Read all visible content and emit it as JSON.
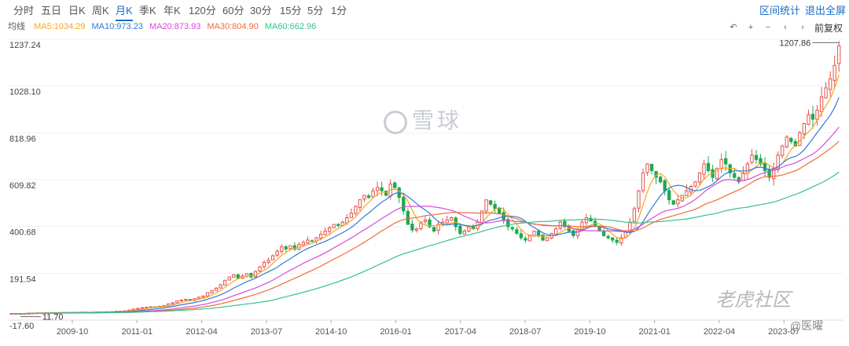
{
  "toolbar": {
    "periods": [
      "分时",
      "五日",
      "日K",
      "周K",
      "月K",
      "季K",
      "年K",
      "120分",
      "60分",
      "30分",
      "15分",
      "5分",
      "1分"
    ],
    "active_period": "月K",
    "range_stats": "区间统计",
    "exit_fullscreen": "退出全屏"
  },
  "ma_legend": {
    "label": "均线",
    "items": [
      {
        "text": "MA5:1034.29",
        "color": "#f5a623"
      },
      {
        "text": "MA10:973.23",
        "color": "#2f7ad6"
      },
      {
        "text": "MA20:873.93",
        "color": "#d94ad8"
      },
      {
        "text": "MA30:804.90",
        "color": "#f06c3c"
      },
      {
        "text": "MA60:662.96",
        "color": "#34c28e"
      }
    ]
  },
  "controls": {
    "icons": [
      "undo-icon",
      "zoom-in-icon",
      "zoom-out-icon",
      "left-icon",
      "right-icon"
    ],
    "glyphs": [
      "↶",
      "+",
      "−",
      "‹",
      "›"
    ],
    "adjust": "前复权"
  },
  "watermarks": {
    "xueqiu": "雪球",
    "laohu": "老虎社区",
    "author": "@医曜"
  },
  "chart_data": {
    "type": "candlestick",
    "y_ticks": [
      "1237.24",
      "1028.10",
      "818.96",
      "609.82",
      "400.68",
      "191.54",
      "-17.60"
    ],
    "ylim": [
      -17.6,
      1237.24
    ],
    "x_ticks": [
      "2009-10",
      "2011-01",
      "2012-04",
      "2013-07",
      "2014-10",
      "2016-01",
      "2017-04",
      "2018-07",
      "2019-10",
      "2021-01",
      "2022-04",
      "2023-07"
    ],
    "annotations": {
      "high": "1207.86",
      "low": "11.70"
    },
    "up_color": "#e8504b",
    "down_color": "#1fa84f",
    "closes": [
      12,
      12,
      11.7,
      12,
      13,
      14,
      15,
      15,
      16,
      16,
      16,
      16,
      17,
      16,
      17,
      17,
      18,
      17,
      17,
      18,
      19,
      19,
      20,
      20,
      22,
      21,
      24,
      27,
      32,
      35,
      38,
      40,
      42,
      40,
      44,
      48,
      55,
      60,
      68,
      72,
      75,
      70,
      78,
      85,
      90,
      105,
      115,
      125,
      140,
      160,
      175,
      185,
      170,
      180,
      190,
      175,
      200,
      220,
      240,
      250,
      270,
      290,
      310,
      300,
      315,
      300,
      320,
      330,
      340,
      335,
      350,
      365,
      380,
      395,
      410,
      405,
      420,
      440,
      460,
      490,
      520,
      540,
      530,
      560,
      575,
      560,
      540,
      590,
      575,
      530,
      470,
      410,
      385,
      390,
      420,
      430,
      400,
      380,
      410,
      420,
      430,
      440,
      400,
      370,
      380,
      400,
      390,
      420,
      470,
      520,
      500,
      480,
      460,
      430,
      400,
      390,
      370,
      350,
      340,
      360,
      380,
      360,
      340,
      350,
      370,
      390,
      420,
      400,
      380,
      360,
      390,
      420,
      440,
      425,
      400,
      380,
      360,
      350,
      340,
      330,
      350,
      380,
      420,
      480,
      560,
      640,
      680,
      650,
      620,
      600,
      560,
      520,
      500,
      520,
      540,
      560,
      580,
      600,
      640,
      680,
      650,
      620,
      660,
      700,
      680,
      640,
      620,
      600,
      640,
      680,
      720,
      700,
      680,
      650,
      620,
      660,
      720,
      760,
      800,
      780,
      760,
      820,
      860,
      900,
      880,
      920,
      980,
      1020,
      1060,
      1120,
      1207.86
    ]
  }
}
